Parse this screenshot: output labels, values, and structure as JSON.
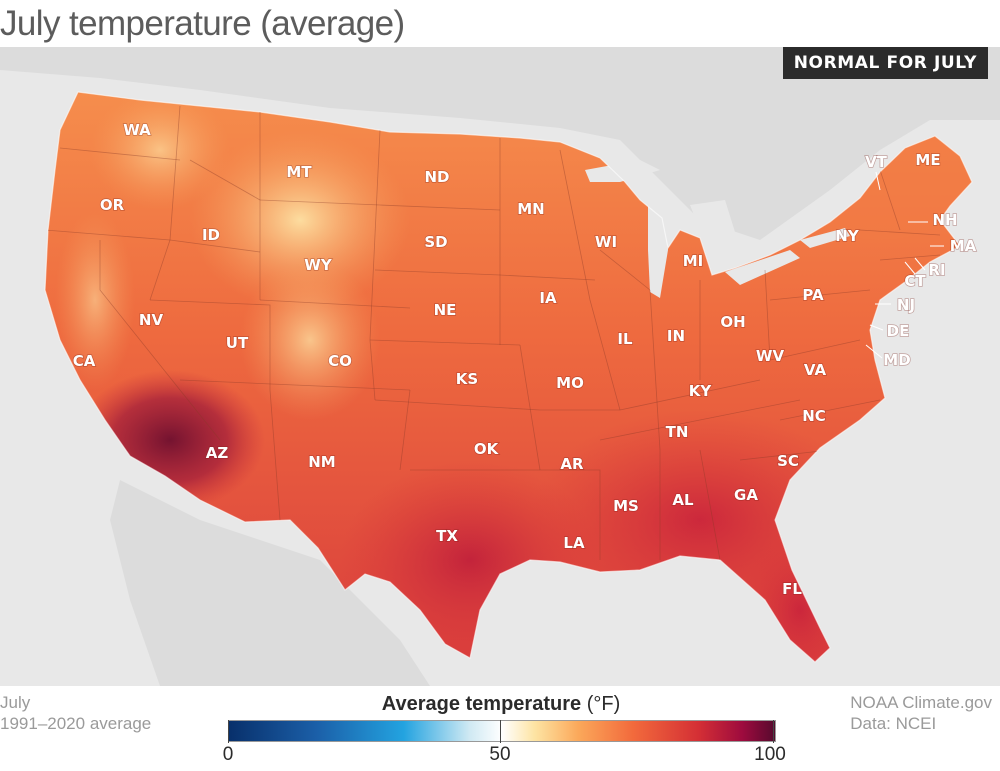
{
  "title": "July temperature (average)",
  "badge": "NORMAL FOR JULY",
  "footer_left": {
    "line1": "July",
    "line2": "1991–2020 average"
  },
  "footer_right": {
    "line1": "NOAA Climate.gov",
    "line2": "Data: NCEI"
  },
  "legend": {
    "title": "Average temperature",
    "unit": "(°F)",
    "ticks": [
      "0",
      "50",
      "100"
    ],
    "colors": [
      "#08306b",
      "#23a3e0",
      "#ffffff",
      "#fba85a",
      "#f26a3c",
      "#d42f35",
      "#570a2e"
    ]
  },
  "states": [
    "WA",
    "OR",
    "CA",
    "ID",
    "NV",
    "MT",
    "WY",
    "UT",
    "AZ",
    "CO",
    "NM",
    "ND",
    "SD",
    "NE",
    "KS",
    "OK",
    "TX",
    "MN",
    "IA",
    "MO",
    "AR",
    "LA",
    "WI",
    "IL",
    "MI",
    "IN",
    "KY",
    "TN",
    "MS",
    "AL",
    "OH",
    "WV",
    "VA",
    "NC",
    "SC",
    "GA",
    "FL",
    "PA",
    "NY",
    "VT",
    "ME",
    "NH",
    "MA",
    "CT",
    "RI",
    "NJ",
    "DE",
    "MD"
  ]
}
